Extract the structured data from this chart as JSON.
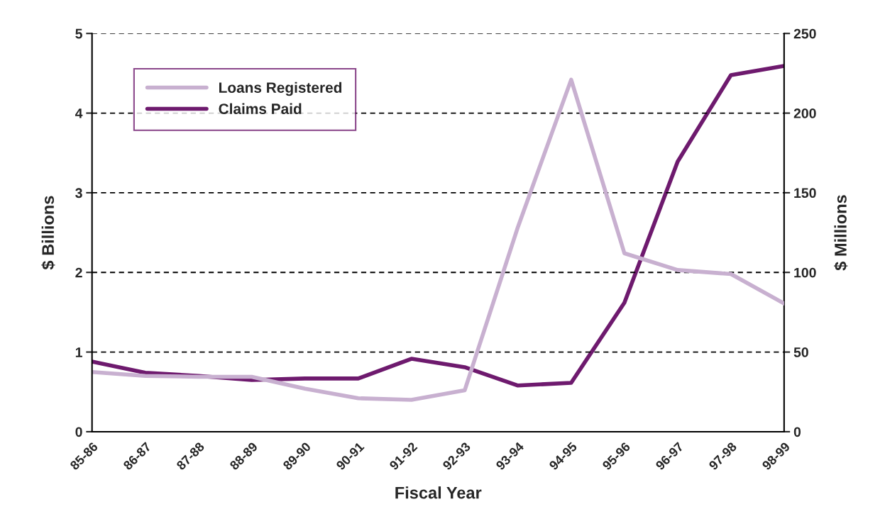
{
  "chart_data": {
    "type": "line",
    "xlabel": "Fiscal Year",
    "ylabel": "$ Billions",
    "y2label": "$ Millions",
    "categories": [
      "85-86",
      "86-87",
      "87-88",
      "88-89",
      "89-90",
      "90-91",
      "91-92",
      "92-93",
      "93-94",
      "94-95",
      "95-96",
      "96-97",
      "97-98",
      "98-99"
    ],
    "series": [
      {
        "name": "Loans Registered",
        "color": "#c8b0d0",
        "values": [
          0.75,
          0.7,
          0.69,
          0.69,
          0.54,
          0.42,
          0.4,
          0.52,
          2.57,
          4.42,
          2.24,
          2.03,
          1.98,
          1.61
        ]
      },
      {
        "name": "Claims Paid",
        "color": "#6e1a6e",
        "axis": "y2",
        "values": [
          44,
          37,
          35,
          32.5,
          33.4,
          33.4,
          45.8,
          40.5,
          29,
          30.7,
          81,
          169.5,
          223.8,
          229.6
        ]
      }
    ],
    "ylim": [
      0,
      5
    ],
    "yticks": [
      0,
      1,
      2,
      3,
      4,
      5
    ],
    "y2lim": [
      0,
      250
    ],
    "y2ticks": [
      0,
      50,
      100,
      150,
      200,
      250
    ],
    "grid": "y",
    "legend": "top left",
    "line_style": "solid",
    "marker": "none"
  }
}
